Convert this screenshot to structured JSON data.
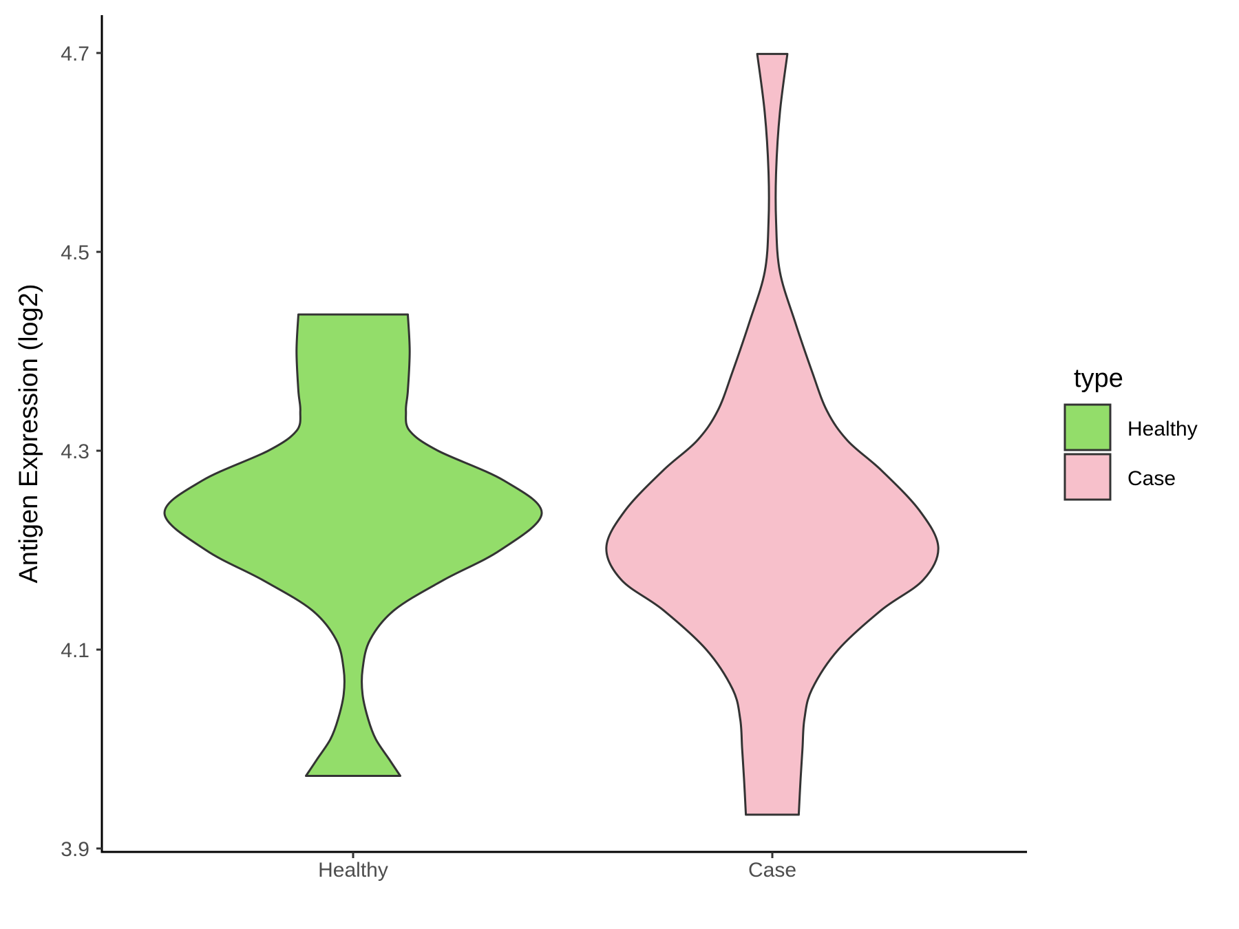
{
  "chart_data": {
    "type": "violin",
    "ylabel": "Antigen Expression (log2)",
    "xlabel": "",
    "categories": [
      "Healthy",
      "Case"
    ],
    "ylim": [
      3.9,
      4.74
    ],
    "yticks": [
      "3.9",
      "4.1",
      "4.3",
      "4.5",
      "4.7"
    ],
    "grid": false,
    "legend": {
      "title": "type",
      "position": "right",
      "items": [
        {
          "label": "Healthy",
          "color": "#93DD6A"
        },
        {
          "label": "Case",
          "color": "#F7C0CB"
        }
      ]
    },
    "series": [
      {
        "name": "Healthy",
        "color": "#93DD6A",
        "min": 3.973,
        "max": 4.437,
        "density": [
          [
            3.973,
            0.25
          ],
          [
            3.99,
            0.19
          ],
          [
            4.01,
            0.12
          ],
          [
            4.03,
            0.08
          ],
          [
            4.055,
            0.05
          ],
          [
            4.08,
            0.05
          ],
          [
            4.11,
            0.09
          ],
          [
            4.14,
            0.22
          ],
          [
            4.17,
            0.48
          ],
          [
            4.2,
            0.78
          ],
          [
            4.237,
            1.0
          ],
          [
            4.27,
            0.8
          ],
          [
            4.3,
            0.45
          ],
          [
            4.32,
            0.3
          ],
          [
            4.34,
            0.28
          ],
          [
            4.36,
            0.29
          ],
          [
            4.4,
            0.3
          ],
          [
            4.437,
            0.29
          ]
        ]
      },
      {
        "name": "Case",
        "color": "#F7C0CB",
        "min": 3.934,
        "max": 4.699,
        "density": [
          [
            3.934,
            0.14
          ],
          [
            3.97,
            0.15
          ],
          [
            4.0,
            0.16
          ],
          [
            4.03,
            0.17
          ],
          [
            4.06,
            0.21
          ],
          [
            4.1,
            0.35
          ],
          [
            4.14,
            0.58
          ],
          [
            4.17,
            0.8
          ],
          [
            4.203,
            0.88
          ],
          [
            4.24,
            0.78
          ],
          [
            4.28,
            0.58
          ],
          [
            4.31,
            0.4
          ],
          [
            4.34,
            0.29
          ],
          [
            4.38,
            0.21
          ],
          [
            4.43,
            0.12
          ],
          [
            4.48,
            0.04
          ],
          [
            4.53,
            0.02
          ],
          [
            4.58,
            0.02
          ],
          [
            4.64,
            0.04
          ],
          [
            4.699,
            0.08
          ]
        ]
      }
    ]
  }
}
